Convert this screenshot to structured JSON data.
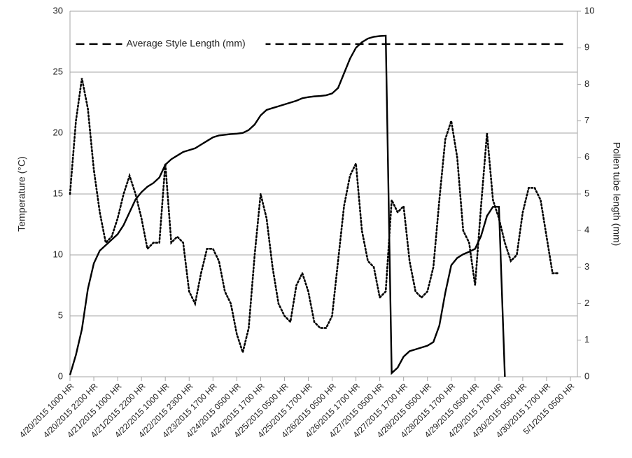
{
  "chart_data": {
    "type": "line",
    "categories": [
      "4/20/2015 1000 HR",
      null,
      null,
      null,
      "4/20/2015 2200 HR",
      null,
      null,
      null,
      "4/21/2015 1000 HR",
      null,
      null,
      null,
      "4/21/2015 2200 HR",
      null,
      null,
      null,
      "4/22/2015 1000 HR",
      null,
      null,
      null,
      "4/22/2015 2300 HR",
      null,
      null,
      null,
      "4/23/2015 1700 HR",
      null,
      null,
      null,
      "4/24/2015 0500 HR",
      null,
      null,
      null,
      "4/24/2015 1700 HR",
      null,
      null,
      null,
      "4/25/2015 0500 HR",
      null,
      null,
      null,
      "4/25/2015 1700 HR",
      null,
      null,
      null,
      "4/26/2015 0500 HR",
      null,
      null,
      null,
      "4/26/2015 1700 HR",
      null,
      null,
      null,
      "4/27/2015 0500 HR",
      null,
      null,
      null,
      "4/27/2015 1700 HR",
      null,
      null,
      null,
      "4/28/2015 0500 HR",
      null,
      null,
      null,
      "4/28/2015 1700 HR",
      null,
      null,
      null,
      "4/29/2015 0500 HR",
      null,
      null,
      null,
      "4/29/2015 1700 HR",
      null,
      null,
      null,
      "4/30/2015 0500 HR",
      null,
      null,
      null,
      "4/30/2015 1700 HR",
      null,
      null,
      null,
      "5/1/2015 0500 HR"
    ],
    "y_label": "Temperature  (°C)",
    "y2_label": "Pollen tube length (mm)",
    "ylim": [
      0,
      30
    ],
    "yticks": [
      0,
      5,
      10,
      15,
      20,
      25,
      30
    ],
    "y2lim": [
      0,
      10
    ],
    "y2ticks": [
      0,
      1,
      2,
      3,
      4,
      5,
      6,
      7,
      8,
      9,
      10
    ],
    "grid": true,
    "series": [
      {
        "color": "#000000",
        "style": "dotted",
        "axis": "y",
        "values": [
          15,
          21,
          24.5,
          22,
          17,
          13.5,
          11,
          11.5,
          13,
          15,
          16.5,
          15,
          13,
          10.5,
          11,
          11,
          17.5,
          11,
          11.5,
          11,
          7,
          6,
          8.5,
          10.5,
          10.5,
          9.5,
          7,
          6,
          3.5,
          2,
          4,
          10,
          15,
          13,
          9,
          6,
          5,
          4.5,
          7.5,
          8.5,
          7,
          4.5,
          4,
          4,
          5,
          9.5,
          14,
          16.5,
          17.5,
          12,
          9.5,
          9,
          6.5,
          7,
          14.5,
          13.5,
          14,
          9.5,
          7,
          6.5,
          7,
          9,
          14.5,
          19.5,
          21,
          18,
          12,
          11,
          7.5,
          14,
          20,
          14.5,
          13,
          11,
          9.5,
          10,
          13.5,
          15.5,
          15.5,
          14.5,
          11.5,
          8.5,
          8.5,
          null,
          null
        ]
      },
      {
        "color": "#000000",
        "style": "solid",
        "axis": "y2",
        "values": [
          0.05,
          0.6,
          1.3,
          2.4,
          3.1,
          3.45,
          3.6,
          3.75,
          3.9,
          4.15,
          4.5,
          4.85,
          5.05,
          5.2,
          5.3,
          5.45,
          5.8,
          5.95,
          6.05,
          6.15,
          6.2,
          6.25,
          6.35,
          6.45,
          6.55,
          6.6,
          6.62,
          6.64,
          6.65,
          6.67,
          6.75,
          6.9,
          7.15,
          7.3,
          7.35,
          7.4,
          7.45,
          7.5,
          7.55,
          7.62,
          7.65,
          7.67,
          7.68,
          7.7,
          7.75,
          7.9,
          8.3,
          8.7,
          9.0,
          9.15,
          9.25,
          9.3,
          9.32,
          9.33,
          0.1,
          0.25,
          0.55,
          0.7,
          0.75,
          0.8,
          0.85,
          0.95,
          1.4,
          2.3,
          3.05,
          3.25,
          3.35,
          3.42,
          3.5,
          3.85,
          4.4,
          4.65,
          4.65,
          0,
          null,
          null,
          null,
          null,
          null,
          null,
          null,
          null,
          null,
          null,
          null
        ]
      },
      {
        "name": "Average Style Length (mm)",
        "color": "#000000",
        "style": "dashed",
        "axis": "y2",
        "values": [
          null,
          9.1,
          9.1,
          9.1,
          9.1,
          9.1,
          9.1,
          9.1,
          9.1,
          9.1,
          9.1,
          9.1,
          9.1,
          9.1,
          9.1,
          9.1,
          9.1,
          9.1,
          9.1,
          9.1,
          9.1,
          9.1,
          9.1,
          9.1,
          9.1,
          9.1,
          9.1,
          9.1,
          9.1,
          9.1,
          9.1,
          9.1,
          9.1,
          9.1,
          9.1,
          9.1,
          9.1,
          9.1,
          9.1,
          9.1,
          9.1,
          9.1,
          9.1,
          9.1,
          9.1,
          9.1,
          9.1,
          9.1,
          9.1,
          9.1,
          9.1,
          9.1,
          9.1,
          9.1,
          9.1,
          9.1,
          9.1,
          9.1,
          9.1,
          9.1,
          9.1,
          9.1,
          9.1,
          9.1,
          9.1,
          9.1,
          9.1,
          9.1,
          9.1,
          9.1,
          9.1,
          9.1,
          9.1,
          9.1,
          9.1,
          9.1,
          9.1,
          9.1,
          9.1,
          9.1,
          9.1,
          9.1,
          9.1,
          9.1,
          null
        ]
      }
    ]
  }
}
